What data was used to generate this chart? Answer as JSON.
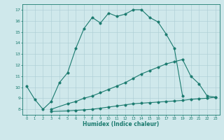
{
  "line1_x": [
    0,
    1,
    2,
    3,
    4,
    5,
    6,
    7,
    8,
    9,
    10,
    11,
    12,
    13,
    14,
    15,
    16,
    17,
    18,
    19
  ],
  "line1_y": [
    10.1,
    8.9,
    8.0,
    8.7,
    10.4,
    11.3,
    13.5,
    15.3,
    16.3,
    15.8,
    16.7,
    16.4,
    16.6,
    17.0,
    17.0,
    16.3,
    15.9,
    14.8,
    13.5,
    9.2
  ],
  "line2_x": [
    3,
    5,
    6,
    7,
    8,
    9,
    10,
    11,
    12,
    13,
    14,
    15,
    16,
    17,
    18,
    19,
    20,
    21,
    22,
    23
  ],
  "line2_y": [
    8.0,
    8.5,
    8.7,
    9.0,
    9.2,
    9.5,
    9.8,
    10.1,
    10.4,
    10.8,
    11.2,
    11.5,
    11.8,
    12.1,
    12.3,
    12.5,
    11.0,
    10.3,
    9.2,
    9.1
  ],
  "line3_x": [
    3,
    5,
    6,
    7,
    8,
    9,
    10,
    11,
    12,
    13,
    14,
    15,
    16,
    17,
    18,
    19,
    20,
    21,
    22,
    23
  ],
  "line3_y": [
    7.8,
    7.85,
    7.9,
    7.95,
    8.0,
    8.1,
    8.2,
    8.3,
    8.4,
    8.5,
    8.55,
    8.6,
    8.65,
    8.7,
    8.75,
    8.8,
    8.9,
    8.95,
    9.0,
    9.1
  ],
  "line_color": "#1a7a6e",
  "bg_color": "#cfe8eb",
  "grid_color": "#aacdd3",
  "xlabel": "Humidex (Indice chaleur)",
  "xlim": [
    -0.5,
    23.5
  ],
  "ylim": [
    7.5,
    17.5
  ],
  "xticks": [
    0,
    1,
    2,
    3,
    4,
    5,
    6,
    7,
    8,
    9,
    10,
    11,
    12,
    13,
    14,
    15,
    16,
    17,
    18,
    19,
    20,
    21,
    22,
    23
  ],
  "yticks": [
    8,
    9,
    10,
    11,
    12,
    13,
    14,
    15,
    16,
    17
  ],
  "tick_color": "#1a7a6e",
  "markersize": 2.5,
  "linewidth": 0.8
}
